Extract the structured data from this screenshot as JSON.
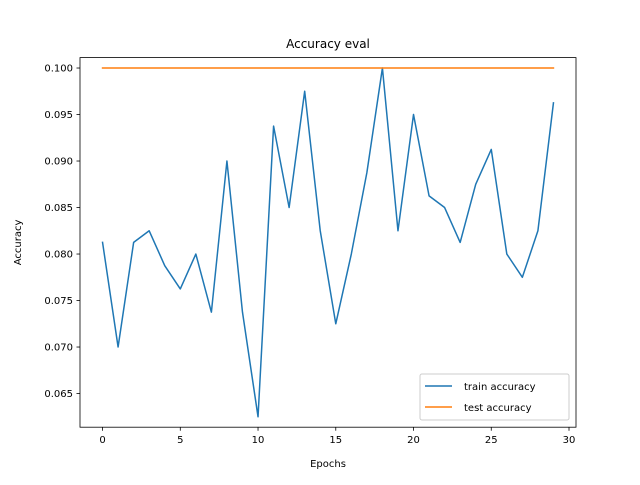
{
  "chart_data": {
    "type": "line",
    "title": "Accuracy eval",
    "xlabel": "Epochs",
    "ylabel": "Accuracy",
    "xlim": [
      -1.45,
      30.45
    ],
    "ylim": [
      0.06138,
      0.10112
    ],
    "x_ticks": [
      0,
      5,
      10,
      15,
      20,
      25,
      30
    ],
    "x_tick_labels": [
      "0",
      "5",
      "10",
      "15",
      "20",
      "25",
      "30"
    ],
    "y_ticks": [
      0.065,
      0.07,
      0.075,
      0.08,
      0.085,
      0.09,
      0.095,
      0.1
    ],
    "y_tick_labels": [
      "0.065",
      "0.070",
      "0.075",
      "0.080",
      "0.085",
      "0.090",
      "0.095",
      "0.100"
    ],
    "grid": false,
    "legend_position": "lower right",
    "x": [
      0,
      1,
      2,
      3,
      4,
      5,
      6,
      7,
      8,
      9,
      10,
      11,
      12,
      13,
      14,
      15,
      16,
      17,
      18,
      19,
      20,
      21,
      22,
      23,
      24,
      25,
      26,
      27,
      28,
      29
    ],
    "series": [
      {
        "name": "train accuracy",
        "color": "#1f77b4",
        "values": [
          0.08125,
          0.07,
          0.08125,
          0.0825,
          0.07875,
          0.07625,
          0.08,
          0.07375,
          0.09,
          0.07375,
          0.0625,
          0.09375,
          0.085,
          0.0975,
          0.0825,
          0.0725,
          0.08,
          0.08875,
          0.1,
          0.0825,
          0.095,
          0.08625,
          0.085,
          0.08125,
          0.0875,
          0.09125,
          0.08,
          0.0775,
          0.0825,
          0.09625
        ]
      },
      {
        "name": "test accuracy",
        "color": "#ff7f0e",
        "values": [
          0.1,
          0.1,
          0.1,
          0.1,
          0.1,
          0.1,
          0.1,
          0.1,
          0.1,
          0.1,
          0.1,
          0.1,
          0.1,
          0.1,
          0.1,
          0.1,
          0.1,
          0.1,
          0.1,
          0.1,
          0.1,
          0.1,
          0.1,
          0.1,
          0.1,
          0.1,
          0.1,
          0.1,
          0.1,
          0.1
        ]
      }
    ]
  }
}
